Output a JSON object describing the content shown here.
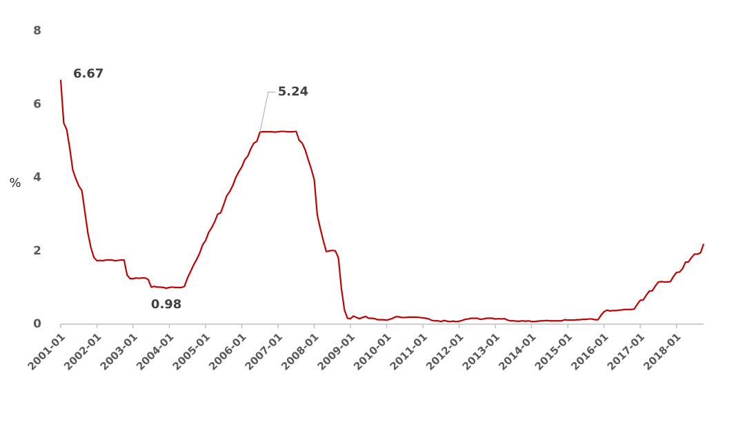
{
  "chart_data": {
    "type": "line",
    "y_label": "%",
    "ylim": [
      0,
      8
    ],
    "yticks": [
      0,
      2,
      4,
      6,
      8
    ],
    "xticks": [
      "2001-01",
      "2002-01",
      "2003-01",
      "2004-01",
      "2005-01",
      "2006-01",
      "2007-01",
      "2008-01",
      "2009-01",
      "2010-01",
      "2011-01",
      "2012-01",
      "2013-01",
      "2014-01",
      "2015-01",
      "2016-01",
      "2017-01",
      "2018-01"
    ],
    "x": [
      "2001-01",
      "2001-02",
      "2001-03",
      "2001-04",
      "2001-05",
      "2001-06",
      "2001-07",
      "2001-08",
      "2001-09",
      "2001-10",
      "2001-11",
      "2001-12",
      "2002-01",
      "2002-02",
      "2002-03",
      "2002-04",
      "2002-05",
      "2002-06",
      "2002-07",
      "2002-08",
      "2002-09",
      "2002-10",
      "2002-11",
      "2002-12",
      "2003-01",
      "2003-02",
      "2003-03",
      "2003-04",
      "2003-05",
      "2003-06",
      "2003-07",
      "2003-08",
      "2003-09",
      "2003-10",
      "2003-11",
      "2003-12",
      "2004-01",
      "2004-02",
      "2004-03",
      "2004-04",
      "2004-05",
      "2004-06",
      "2004-07",
      "2004-08",
      "2004-09",
      "2004-10",
      "2004-11",
      "2004-12",
      "2005-01",
      "2005-02",
      "2005-03",
      "2005-04",
      "2005-05",
      "2005-06",
      "2005-07",
      "2005-08",
      "2005-09",
      "2005-10",
      "2005-11",
      "2005-12",
      "2006-01",
      "2006-02",
      "2006-03",
      "2006-04",
      "2006-05",
      "2006-06",
      "2006-07",
      "2006-08",
      "2006-09",
      "2006-10",
      "2006-11",
      "2006-12",
      "2007-01",
      "2007-02",
      "2007-03",
      "2007-04",
      "2007-05",
      "2007-06",
      "2007-07",
      "2007-08",
      "2007-09",
      "2007-10",
      "2007-11",
      "2007-12",
      "2008-01",
      "2008-02",
      "2008-03",
      "2008-04",
      "2008-05",
      "2008-06",
      "2008-07",
      "2008-08",
      "2008-09",
      "2008-10",
      "2008-11",
      "2008-12",
      "2009-01",
      "2009-02",
      "2009-03",
      "2009-04",
      "2009-05",
      "2009-06",
      "2009-07",
      "2009-08",
      "2009-09",
      "2009-10",
      "2009-11",
      "2009-12",
      "2010-01",
      "2010-02",
      "2010-03",
      "2010-04",
      "2010-05",
      "2010-06",
      "2010-07",
      "2010-08",
      "2010-09",
      "2010-10",
      "2010-11",
      "2010-12",
      "2011-01",
      "2011-02",
      "2011-03",
      "2011-04",
      "2011-05",
      "2011-06",
      "2011-07",
      "2011-08",
      "2011-09",
      "2011-10",
      "2011-11",
      "2011-12",
      "2012-01",
      "2012-02",
      "2012-03",
      "2012-04",
      "2012-05",
      "2012-06",
      "2012-07",
      "2012-08",
      "2012-09",
      "2012-10",
      "2012-11",
      "2012-12",
      "2013-01",
      "2013-02",
      "2013-03",
      "2013-04",
      "2013-05",
      "2013-06",
      "2013-07",
      "2013-08",
      "2013-09",
      "2013-10",
      "2013-11",
      "2013-12",
      "2014-01",
      "2014-02",
      "2014-03",
      "2014-04",
      "2014-05",
      "2014-06",
      "2014-07",
      "2014-08",
      "2014-09",
      "2014-10",
      "2014-11",
      "2014-12",
      "2015-01",
      "2015-02",
      "2015-03",
      "2015-04",
      "2015-05",
      "2015-06",
      "2015-07",
      "2015-08",
      "2015-09",
      "2015-10",
      "2015-11",
      "2015-12",
      "2016-01",
      "2016-02",
      "2016-03",
      "2016-04",
      "2016-05",
      "2016-06",
      "2016-07",
      "2016-08",
      "2016-09",
      "2016-10",
      "2016-11",
      "2016-12",
      "2017-01",
      "2017-02",
      "2017-03",
      "2017-04",
      "2017-05",
      "2017-06",
      "2017-07",
      "2017-08",
      "2017-09",
      "2017-10",
      "2017-11",
      "2017-12",
      "2018-01",
      "2018-02",
      "2018-03",
      "2018-04",
      "2018-05",
      "2018-06",
      "2018-07",
      "2018-08",
      "2018-09",
      "2018-10"
    ],
    "series": [
      {
        "color": "#c00000",
        "values": [
          6.67,
          5.49,
          5.31,
          4.8,
          4.21,
          3.97,
          3.77,
          3.65,
          3.07,
          2.49,
          2.09,
          1.82,
          1.73,
          1.74,
          1.73,
          1.75,
          1.75,
          1.75,
          1.73,
          1.74,
          1.75,
          1.75,
          1.34,
          1.24,
          1.24,
          1.26,
          1.25,
          1.26,
          1.26,
          1.22,
          1.01,
          1.03,
          1.01,
          1.01,
          1.0,
          0.98,
          1.0,
          1.01,
          1.0,
          1.0,
          1.0,
          1.03,
          1.26,
          1.43,
          1.61,
          1.76,
          1.93,
          2.16,
          2.28,
          2.5,
          2.63,
          2.79,
          3.0,
          3.04,
          3.26,
          3.5,
          3.62,
          3.78,
          4.0,
          4.16,
          4.29,
          4.49,
          4.59,
          4.79,
          4.94,
          4.99,
          5.24,
          5.25,
          5.25,
          5.25,
          5.25,
          5.24,
          5.25,
          5.26,
          5.26,
          5.25,
          5.25,
          5.25,
          5.26,
          5.02,
          4.94,
          4.76,
          4.49,
          4.24,
          3.94,
          2.98,
          2.61,
          2.28,
          1.98,
          2.0,
          2.01,
          2.0,
          1.81,
          0.97,
          0.39,
          0.16,
          0.15,
          0.22,
          0.18,
          0.15,
          0.18,
          0.21,
          0.16,
          0.16,
          0.15,
          0.12,
          0.12,
          0.12,
          0.11,
          0.13,
          0.16,
          0.2,
          0.2,
          0.18,
          0.18,
          0.19,
          0.19,
          0.19,
          0.19,
          0.18,
          0.17,
          0.16,
          0.14,
          0.1,
          0.09,
          0.09,
          0.07,
          0.1,
          0.08,
          0.07,
          0.08,
          0.07,
          0.08,
          0.1,
          0.13,
          0.14,
          0.16,
          0.16,
          0.16,
          0.13,
          0.14,
          0.16,
          0.16,
          0.16,
          0.14,
          0.15,
          0.14,
          0.15,
          0.11,
          0.09,
          0.09,
          0.08,
          0.08,
          0.09,
          0.08,
          0.09,
          0.07,
          0.07,
          0.08,
          0.09,
          0.09,
          0.1,
          0.09,
          0.09,
          0.09,
          0.09,
          0.09,
          0.12,
          0.11,
          0.11,
          0.11,
          0.12,
          0.12,
          0.13,
          0.13,
          0.14,
          0.14,
          0.12,
          0.12,
          0.24,
          0.34,
          0.38,
          0.36,
          0.37,
          0.37,
          0.38,
          0.39,
          0.4,
          0.4,
          0.4,
          0.41,
          0.54,
          0.65,
          0.66,
          0.79,
          0.9,
          0.91,
          1.04,
          1.15,
          1.16,
          1.15,
          1.15,
          1.16,
          1.3,
          1.41,
          1.42,
          1.51,
          1.69,
          1.7,
          1.82,
          1.91,
          1.91,
          1.95,
          2.19
        ]
      }
    ],
    "annotations": [
      {
        "x": "2001-01",
        "y": 6.67,
        "label": "6.67"
      },
      {
        "x": "2006-07",
        "y": 5.24,
        "label": "5.24"
      },
      {
        "x": "2003-12",
        "y": 0.98,
        "label": "0.98"
      }
    ]
  }
}
